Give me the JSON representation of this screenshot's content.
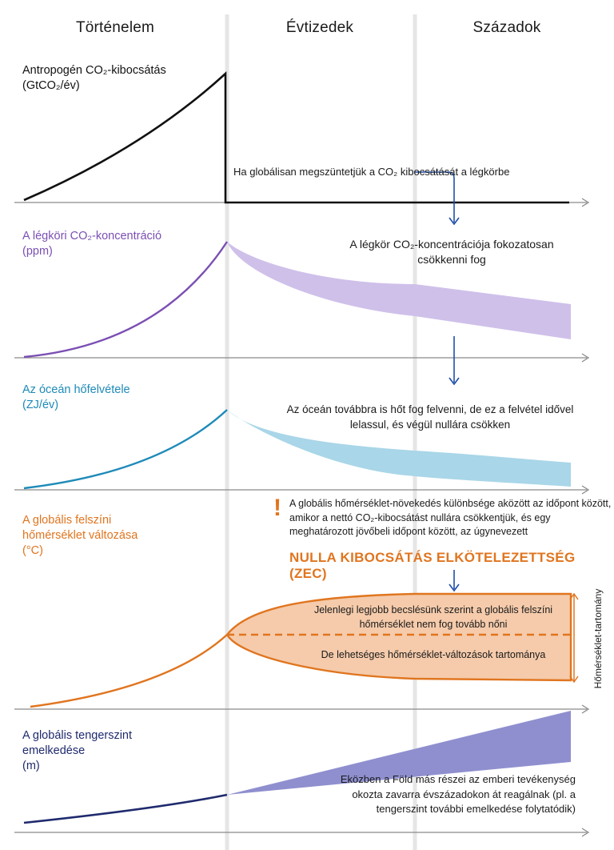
{
  "columns": {
    "history": "Történelem",
    "decades": "Évtizedek",
    "centuries": "Századok"
  },
  "panels": {
    "emissions": {
      "label_line1": "Antropogén CO₂-kibocsátás",
      "label_line2": "(GtCO₂/év)",
      "color": "#111111",
      "note_line1": "Ha globálisan megszüntetjük a CO₂",
      "note_line2": "kibocsátását a légkörbe"
    },
    "concentration": {
      "label_line1": "A légköri CO₂-koncentráció",
      "label_line2": "(ppm)",
      "color": "#7b4fb3",
      "band_color": "#cfc0ea",
      "note_line1": "A légkör CO₂-koncentrációja",
      "note_line2": "fokozatosan csökkenni fog"
    },
    "ocean_heat": {
      "label_line1": "Az óceán hőfelvétele",
      "label_line2": "(ZJ/év)",
      "color": "#1e8ab8",
      "band_color": "#a9d6e8",
      "note_line1": "Az óceán továbbra is hőt fog felvenni,",
      "note_line2": "de ez a felvétel idővel lelassul, és végül nullára csökken"
    },
    "temperature": {
      "label_line1": "A globális felszíni",
      "label_line2": "hőmérséklet változása",
      "label_line3": "(°C)",
      "color": "#e0751f",
      "band_color": "#f5cbab",
      "warning_line1": "A globális hőmérséklet-növekedés különbsége aközött",
      "warning_line2": "az időpont között, amikor a nettó CO₂-kibocsátást nullára",
      "warning_line3": "csökkentjük, és egy meghatározott jövőbeli időpont között,",
      "warning_line4": "az úgynevezett",
      "zec_title": "NULLA KIBOCSÁTÁS ELKÖTELEZETTSÉG (ZEC)",
      "best_line1": "Jelenlegi legjobb becslésünk szerint a globális",
      "best_line2": "felszíni hőmérséklet nem fog tovább nőni",
      "range_note": "De lehetséges hőmérséklet-változások tartománya",
      "range_axis": "Hőmérséklet-tartomány"
    },
    "sea_level": {
      "label_line1": "A globális tengerszint",
      "label_line2": "emelkedése",
      "label_line3": "(m)",
      "color": "#1f2a6e",
      "band_color": "#8f8fcf",
      "note_line1": "Eközben a Föld más részei",
      "note_line2": "az emberi tevékenység okozta zavarra",
      "note_line3": "évszázadokon át reagálnak (pl. a tengerszint",
      "note_line4": "további emelkedése folytatódik)"
    }
  },
  "colors": {
    "axis": "#8a8a8a",
    "arrow": "#1f4fa8",
    "divider": "#e6e6e6"
  }
}
